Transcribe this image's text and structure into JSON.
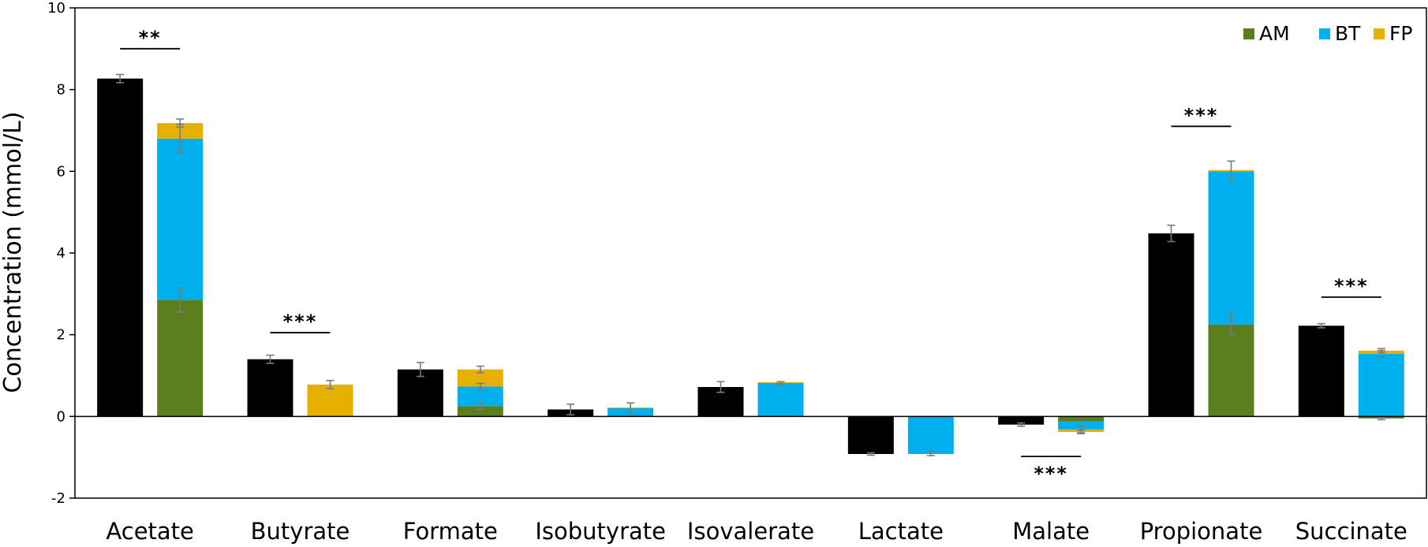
{
  "chart_data": {
    "type": "bar",
    "ylabel": "Concentration (mmol/L)",
    "ylim": [
      -2,
      10
    ],
    "yticks": [
      "-2",
      "0",
      "2",
      "4",
      "6",
      "8",
      "10"
    ],
    "grid": false,
    "legend_position": "top-right",
    "colors": {
      "observed": "#000000",
      "AM": "#5a7f1c",
      "BT": "#00b0ee",
      "FP": "#e6b000"
    },
    "legend": [
      {
        "name": "AM",
        "color": "#5a7f1c"
      },
      {
        "name": "BT",
        "color": "#00b0ee"
      },
      {
        "name": "FP",
        "color": "#e6b000"
      }
    ],
    "categories": [
      "Acetate",
      "Butyrate",
      "Formate",
      "Isobutyrate",
      "Isovalerate",
      "Lactate",
      "Malate",
      "Propionate",
      "Succinate"
    ],
    "observed": {
      "values": [
        8.27,
        1.4,
        1.15,
        0.17,
        0.72,
        -0.92,
        -0.2,
        4.48,
        2.22
      ],
      "errors": [
        0.1,
        0.1,
        0.17,
        0.13,
        0.13,
        0.03,
        0.04,
        0.2,
        0.05
      ]
    },
    "series": [
      {
        "name": "AM",
        "values": [
          2.85,
          0.0,
          0.25,
          0.0,
          0.0,
          0.0,
          -0.12,
          2.25,
          -0.05
        ],
        "errors": [
          0.3,
          0.0,
          0.08,
          0.0,
          0.05,
          0.0,
          0.0,
          0.25,
          0.03
        ]
      },
      {
        "name": "BT",
        "values": [
          3.95,
          0.0,
          0.48,
          0.2,
          0.82,
          -0.92,
          -0.2,
          3.75,
          1.53
        ],
        "errors": [
          0.35,
          0.0,
          0.08,
          0.13,
          0.03,
          0.04,
          0.08,
          0.25,
          0.08
        ]
      },
      {
        "name": "FP",
        "values": [
          0.38,
          0.78,
          0.42,
          0.02,
          0.02,
          0.0,
          -0.06,
          0.03,
          0.08
        ],
        "errors": [
          0.1,
          0.1,
          0.08,
          0.0,
          0.0,
          0.0,
          0.04,
          0.0,
          0.05
        ]
      }
    ],
    "significance": [
      {
        "category": "Acetate",
        "label": "**",
        "level": 9.0,
        "label_side": "above"
      },
      {
        "category": "Butyrate",
        "label": "***",
        "level": 2.05,
        "label_side": "above"
      },
      {
        "category": "Malate",
        "label": "***",
        "level": -0.98,
        "label_side": "below"
      },
      {
        "category": "Propionate",
        "label": "***",
        "level": 7.1,
        "label_side": "above"
      },
      {
        "category": "Succinate",
        "label": "***",
        "level": 2.92,
        "label_side": "above"
      }
    ]
  }
}
